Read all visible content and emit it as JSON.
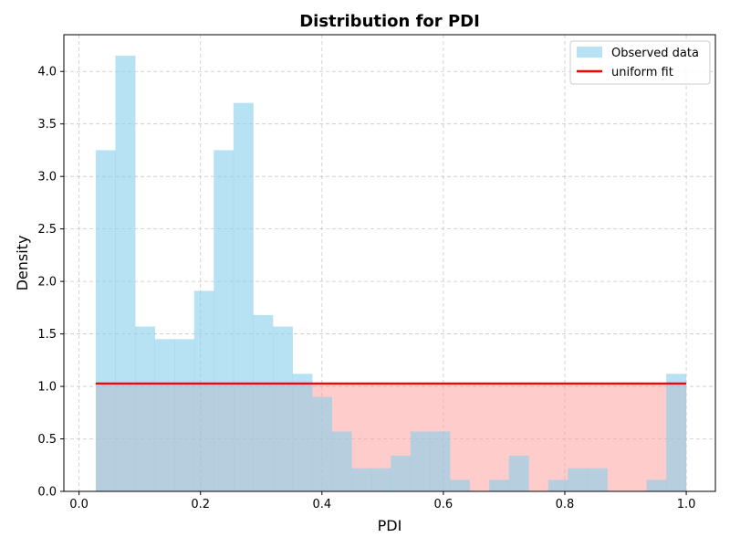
{
  "chart_data": {
    "type": "bar",
    "title": "Distribution for PDI",
    "xlabel": "PDI",
    "ylabel": "Density",
    "xlim": [
      -0.025,
      1.048
    ],
    "ylim": [
      0,
      4.35
    ],
    "xticks": [
      0.0,
      0.2,
      0.4,
      0.6,
      0.8,
      1.0
    ],
    "xtick_labels": [
      "0.0",
      "0.2",
      "0.4",
      "0.6",
      "0.8",
      "1.0"
    ],
    "yticks": [
      0.0,
      0.5,
      1.0,
      1.5,
      2.0,
      2.5,
      3.0,
      3.5,
      4.0
    ],
    "ytick_labels": [
      "0.0",
      "0.5",
      "1.0",
      "1.5",
      "2.0",
      "2.5",
      "3.0",
      "3.5",
      "4.0"
    ],
    "grid": true,
    "legend_position": "top-right",
    "histogram": {
      "name": "Observed data",
      "color": "#87ceeb",
      "bin_start": 0.0275,
      "bin_width": 0.0324,
      "densities": [
        3.25,
        4.15,
        1.57,
        1.45,
        1.45,
        1.91,
        3.25,
        3.7,
        1.68,
        1.57,
        1.12,
        0.9,
        0.57,
        0.22,
        0.22,
        0.34,
        0.57,
        0.57,
        0.11,
        0.0,
        0.11,
        0.34,
        0.0,
        0.11,
        0.22,
        0.22,
        0.0,
        0.0,
        0.11,
        1.12
      ]
    },
    "fit": {
      "name": "uniform fit",
      "color": "#ff0000",
      "fill_color": "#ff9999",
      "x_start": 0.0275,
      "x_end": 1.0,
      "y": 1.028
    }
  }
}
